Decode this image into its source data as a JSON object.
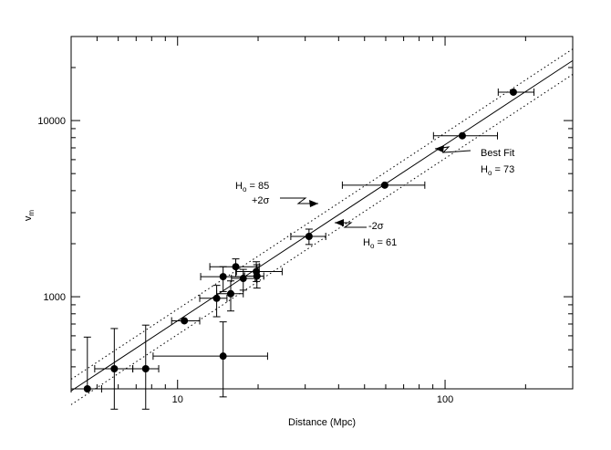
{
  "chart_data": {
    "type": "scatter",
    "xscale": "log",
    "yscale": "log",
    "xlim": [
      4,
      300
    ],
    "ylim": [
      300,
      30000
    ],
    "xlabel": "Distance (Mpc)",
    "ylabel_main": "v",
    "ylabel_sub": "m",
    "x_tick_labels": [
      {
        "value": 10,
        "label": "10"
      },
      {
        "value": 100,
        "label": "100"
      }
    ],
    "y_tick_labels": [
      {
        "value": 1000,
        "label": "1000"
      },
      {
        "value": 10000,
        "label": "10000"
      }
    ],
    "points": [
      {
        "x": 4.6,
        "y": 300,
        "xerr": [
          4.0,
          5.2
        ],
        "yerr": [
          300,
          590
        ]
      },
      {
        "x": 5.8,
        "y": 390,
        "xerr": [
          4.9,
          6.8
        ],
        "yerr": [
          230,
          660
        ]
      },
      {
        "x": 7.6,
        "y": 390,
        "xerr": [
          6.8,
          8.5
        ],
        "yerr": [
          230,
          690
        ]
      },
      {
        "x": 10.6,
        "y": 730,
        "xerr": [
          9.5,
          12.1
        ],
        "yerr": null
      },
      {
        "x": 14.0,
        "y": 980,
        "xerr": [
          12.1,
          15.3
        ],
        "yerr": [
          770,
          1160
        ]
      },
      {
        "x": 14.8,
        "y": 1300,
        "xerr": [
          12.2,
          17.6
        ],
        "yerr": [
          1070,
          1480
        ]
      },
      {
        "x": 15.8,
        "y": 1040,
        "xerr": [
          14.0,
          17.6
        ],
        "yerr": [
          830,
          1230
        ]
      },
      {
        "x": 16.5,
        "y": 1480,
        "xerr": [
          13.2,
          20.2
        ],
        "yerr": [
          1300,
          1640
        ]
      },
      {
        "x": 17.6,
        "y": 1270,
        "xerr": [
          15.9,
          19.5
        ],
        "yerr": [
          1090,
          1430
        ]
      },
      {
        "x": 19.7,
        "y": 1390,
        "xerr": [
          16.6,
          24.6
        ],
        "yerr": [
          1220,
          1580
        ]
      },
      {
        "x": 19.8,
        "y": 1310,
        "xerr": [
          17.8,
          21.0
        ],
        "yerr": [
          1120,
          1520
        ]
      },
      {
        "x": 14.8,
        "y": 460,
        "xerr": [
          8.1,
          21.7
        ],
        "yerr": [
          270,
          720
        ]
      },
      {
        "x": 31.0,
        "y": 2200,
        "xerr": [
          26.5,
          35.8
        ],
        "yerr": [
          1980,
          2420
        ]
      },
      {
        "x": 59.5,
        "y": 4300,
        "xerr": [
          41.3,
          84.0
        ],
        "yerr": null
      },
      {
        "x": 116.0,
        "y": 8200,
        "xerr": [
          90.5,
          157.0
        ],
        "yerr": null
      },
      {
        "x": 180.0,
        "y": 14500,
        "xerr": [
          158.0,
          215.0
        ],
        "yerr": null
      }
    ],
    "fit_lines": [
      {
        "name": "Best Fit",
        "slope_H0": 73,
        "style": "solid"
      },
      {
        "name": "+2σ",
        "slope_H0": 85,
        "style": "dotted"
      },
      {
        "name": "-2σ",
        "slope_H0": 61,
        "style": "dotted"
      }
    ],
    "annotations": {
      "best_fit": {
        "text": "Best Fit",
        "h0": "73"
      },
      "upper": {
        "h0": "85",
        "sigma": "+2σ"
      },
      "lower": {
        "h0": "61",
        "sigma": "-2σ"
      },
      "h_main": "H",
      "h_sub": "o",
      "eq": " = "
    }
  }
}
